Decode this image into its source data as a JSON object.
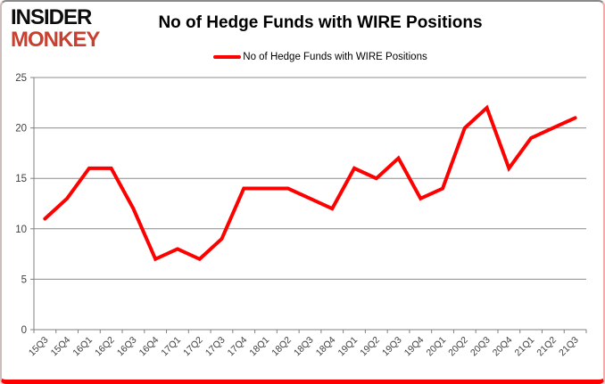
{
  "logo": {
    "line1": "INSIDER",
    "line2": "MONKEY"
  },
  "header": {
    "title": "No of Hedge Funds with WIRE Positions"
  },
  "legend": {
    "label": "No of Hedge Funds with WIRE Positions"
  },
  "colors": {
    "series": "#ff0000",
    "logo_accent": "#c8402f",
    "gridline": "#8c8c8c",
    "axis": "#808080",
    "tick_label": "#3f3f3f",
    "title_text": "#000000"
  },
  "chart_data": {
    "type": "line",
    "title": "No of Hedge Funds with WIRE Positions",
    "legend_entries": [
      "No of Hedge Funds with WIRE Positions"
    ],
    "legend_position": "top",
    "grid": true,
    "xlabel": "",
    "ylabel": "",
    "ylim": [
      0,
      25
    ],
    "yticks": [
      0,
      5,
      10,
      15,
      20,
      25
    ],
    "categories": [
      "15Q3",
      "15Q4",
      "16Q1",
      "16Q2",
      "16Q3",
      "16Q4",
      "17Q1",
      "17Q2",
      "17Q3",
      "17Q4",
      "18Q1",
      "18Q2",
      "18Q3",
      "18Q4",
      "19Q1",
      "19Q2",
      "19Q3",
      "19Q4",
      "20Q1",
      "20Q2",
      "20Q3",
      "20Q4",
      "21Q1",
      "21Q2",
      "21Q3"
    ],
    "series": [
      {
        "name": "No of Hedge Funds with WIRE Positions",
        "color": "#ff0000",
        "values": [
          11,
          13,
          16,
          16,
          12,
          7,
          8,
          7,
          9,
          14,
          14,
          14,
          13,
          12,
          16,
          15,
          17,
          13,
          14,
          20,
          22,
          16,
          19,
          20,
          21
        ]
      }
    ]
  }
}
